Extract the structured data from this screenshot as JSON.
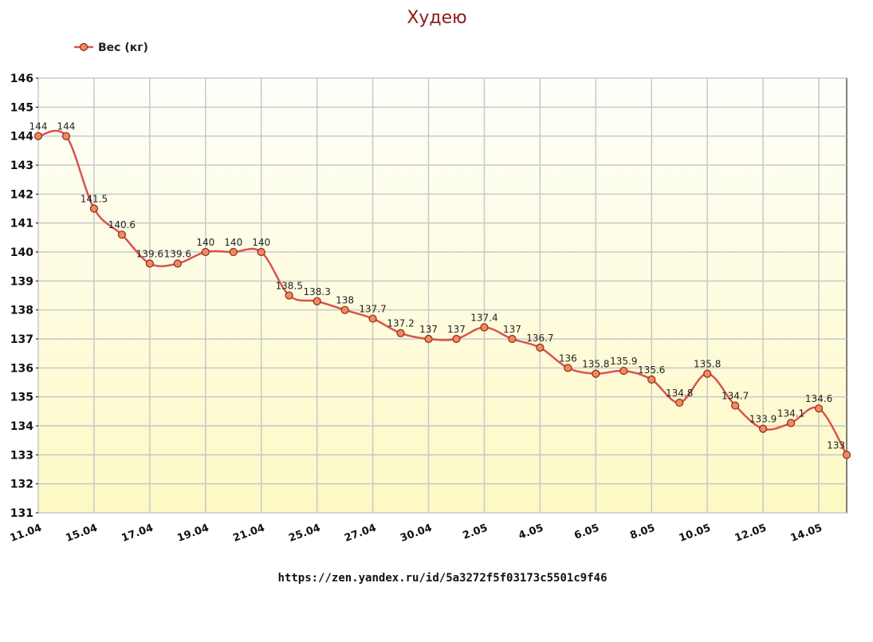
{
  "chart_data": {
    "type": "line",
    "title": "Худею",
    "xlabel": "",
    "ylabel": "",
    "ylim": [
      131,
      146
    ],
    "yticks": [
      131,
      132,
      133,
      134,
      135,
      136,
      137,
      138,
      139,
      140,
      141,
      142,
      143,
      144,
      145,
      146
    ],
    "x_tick_labels": [
      "11.04",
      "15.04",
      "17.04",
      "19.04",
      "21.04",
      "25.04",
      "27.04",
      "30.04",
      "2.05",
      "4.05",
      "6.05",
      "8.05",
      "10.05",
      "12.05",
      "14.05"
    ],
    "x_tick_positions": [
      0,
      2,
      4,
      6,
      8,
      10,
      12,
      14,
      16,
      18,
      20,
      22,
      24,
      26,
      28
    ],
    "grid": true,
    "legend_position": "top-left",
    "series": [
      {
        "name": "Вес (кг)",
        "color": "#d9534f",
        "marker_fill": "#f08a5d",
        "values": [
          144,
          144,
          141.5,
          140.6,
          139.6,
          139.6,
          140,
          140,
          140,
          138.5,
          138.3,
          138,
          137.7,
          137.2,
          137,
          137,
          137.4,
          137,
          136.7,
          136,
          135.8,
          135.9,
          135.6,
          134.8,
          135.8,
          134.7,
          133.9,
          134.1,
          134.6,
          133
        ],
        "labels": [
          "144",
          "144",
          "141.5",
          "140.6",
          "139.6",
          "139.6",
          "140",
          "140",
          "140",
          "138.5",
          "138.3",
          "138",
          "137.7",
          "137.2",
          "137",
          "137",
          "137.4",
          "137",
          "136.7",
          "136",
          "135.8",
          "135.9",
          "135.6",
          "134.8",
          "135.8",
          "134.7",
          "133.9",
          "134.1",
          "134.6",
          "133"
        ]
      }
    ],
    "background_gradient": [
      "#fffffb",
      "#fdf9c4"
    ],
    "grid_color": "#c8c8c8"
  },
  "source_text": "https://zen.yandex.ru/id/5a3272f5f03173c5501c9f46"
}
